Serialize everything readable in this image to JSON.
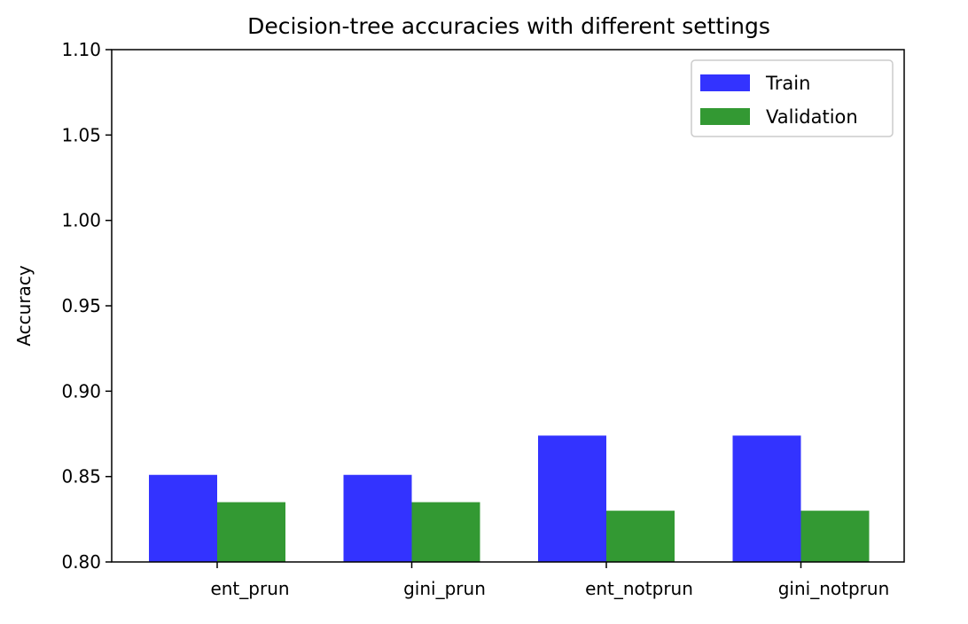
{
  "chart_data": {
    "type": "bar",
    "title": "Decision-tree accuracies with different settings",
    "xlabel": "",
    "ylabel": "Accuracy",
    "categories": [
      "ent_prun",
      "gini_prun",
      "ent_notprun",
      "gini_notprun"
    ],
    "series": [
      {
        "name": "Train",
        "color": "#3333ff",
        "values": [
          0.851,
          0.851,
          0.874,
          0.874
        ]
      },
      {
        "name": "Validation",
        "color": "#339933",
        "values": [
          0.835,
          0.835,
          0.83,
          0.83
        ]
      }
    ],
    "ylim": [
      0.8,
      1.1
    ],
    "yticks": [
      "0.80",
      "0.85",
      "0.90",
      "0.95",
      "1.00",
      "1.05",
      "1.10"
    ],
    "grid": false,
    "legend": "top-right"
  }
}
